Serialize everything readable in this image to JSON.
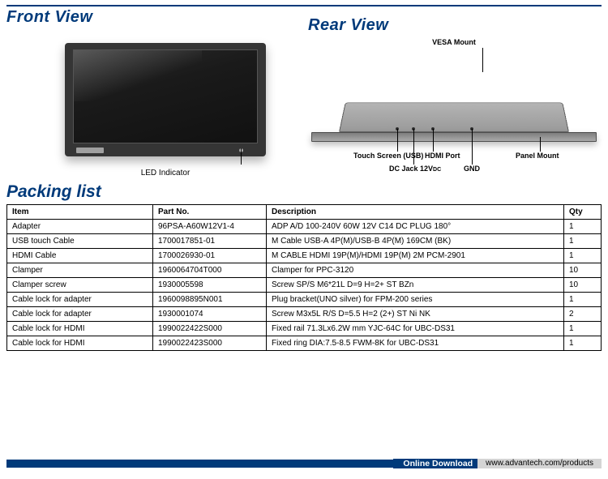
{
  "colors": {
    "brand": "#003a7a",
    "text": "#000000",
    "footer_url_bg": "#d4d4d4"
  },
  "sections": {
    "front_title": "Front View",
    "rear_title": "Rear View",
    "packing_title": "Packing list"
  },
  "front": {
    "led_label": "LED Indicator"
  },
  "rear": {
    "vesa": "VESA Mount",
    "touch": "Touch Screen (USB)",
    "hdmi": "HDMI Port",
    "panel": "Panel Mount",
    "dcjack": "DC Jack 12V",
    "dcjack_sub": "DC",
    "gnd": "GND"
  },
  "packing": {
    "headers": {
      "item": "Item",
      "part": "Part No.",
      "desc": "Description",
      "qty": "Qty"
    },
    "rows": [
      {
        "item": "Adapter",
        "part": "96PSA-A60W12V1-4",
        "desc": "ADP A/D 100-240V 60W 12V C14 DC PLUG 180°",
        "qty": "1"
      },
      {
        "item": "USB touch Cable",
        "part": "1700017851-01",
        "desc": "M Cable USB-A 4P(M)/USB-B 4P(M) 169CM (BK)",
        "qty": "1"
      },
      {
        "item": "HDMI Cable",
        "part": "1700026930-01",
        "desc": "M CABLE HDMI 19P(M)/HDMI 19P(M) 2M PCM-2901",
        "qty": "1"
      },
      {
        "item": "Clamper",
        "part": "1960064704T000",
        "desc": "Clamper for PPC-3120",
        "qty": "10"
      },
      {
        "item": "Clamper screw",
        "part": "1930005598",
        "desc": "Screw SP/S M6*21L D=9 H=2+ ST BZn",
        "qty": "10"
      },
      {
        "item": "Cable lock for adapter",
        "part": "1960098895N001",
        "desc": "Plug bracket(UNO silver) for FPM-200 series",
        "qty": "1"
      },
      {
        "item": "Cable lock for adapter",
        "part": "1930001074",
        "desc": "Screw M3x5L R/S D=5.5 H=2 (2+) ST Ni NK",
        "qty": "2"
      },
      {
        "item": "Cable lock for HDMI",
        "part": "1990022422S000",
        "desc": "Fixed rail 71.3Lx6.2W mm YJC-64C for UBC-DS31",
        "qty": "1"
      },
      {
        "item": "Cable lock for HDMI",
        "part": "1990022423S000",
        "desc": "Fixed ring DIA:7.5-8.5 FWM-8K for UBC-DS31",
        "qty": "1"
      }
    ]
  },
  "footer": {
    "label": "Online Download",
    "url": "www.advantech.com/products"
  }
}
